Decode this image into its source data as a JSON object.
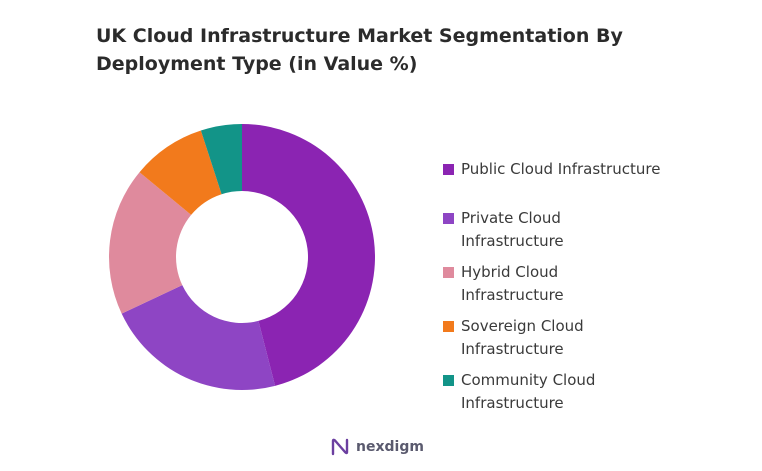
{
  "chart_data": {
    "type": "pie",
    "title": "UK Cloud Infrastructure Market Segmentation By Deployment Type (in Value %)",
    "legend_position": "right",
    "categories": [
      "Public Cloud Infrastructure",
      "Private Cloud Infrastructure",
      "Hybrid Cloud Infrastructure",
      "Sovereign Cloud Infrastructure",
      "Community Cloud Infrastructure"
    ],
    "values": [
      46,
      22,
      18,
      9,
      5
    ],
    "colors": [
      "#8b24b2",
      "#8e45c4",
      "#df8a9d",
      "#f27a1c",
      "#129488"
    ]
  },
  "legend": [
    {
      "label": "Public Cloud Infrastructure",
      "color": "#8b24b2"
    },
    {
      "label": "Private Cloud\nInfrastructure",
      "color": "#8e45c4"
    },
    {
      "label": "Hybrid Cloud\nInfrastructure",
      "color": "#df8a9d"
    },
    {
      "label": "Sovereign Cloud\nInfrastructure",
      "color": "#f27a1c"
    },
    {
      "label": "Community Cloud\nInfrastructure",
      "color": "#129488"
    }
  ],
  "brand": {
    "name": "nexdigm",
    "icon": "nexdigm-logo-icon",
    "color": "#6b3fa0"
  }
}
